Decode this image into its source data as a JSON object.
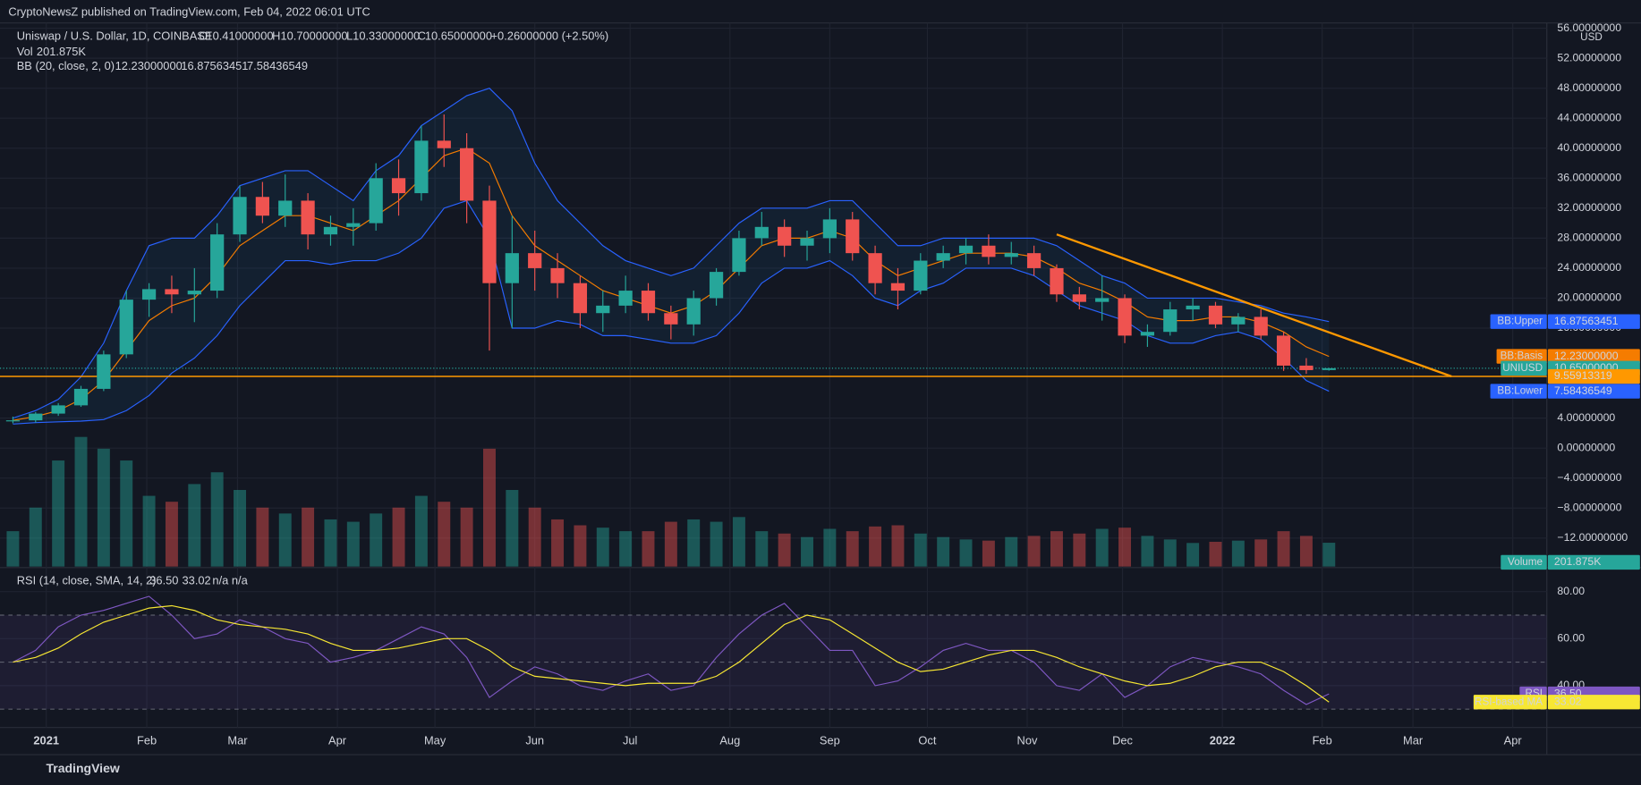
{
  "chart_data": {
    "type": "candlestick",
    "publisher": "CryptoNewsZ published on TradingView.com, Feb 04, 2022 06:01 UTC",
    "legend": {
      "symbol": "Uniswap / U.S. Dollar, 1D, COINBASE",
      "open_key": "O",
      "open": "10.41000000",
      "high_key": "H",
      "high": "10.70000000",
      "low_key": "L",
      "low": "10.33000000",
      "close_key": "C",
      "close": "10.65000000",
      "change": "+0.26000000 (+2.50%)"
    },
    "currency": "USD",
    "up_color": "#26a69a",
    "down_color": "#ef5350",
    "xlim": [
      -0.2,
      67.6
    ],
    "xticks": [
      {
        "value": 1.47,
        "label": "2021"
      },
      {
        "value": 5.9,
        "label": "Feb"
      },
      {
        "value": 9.9,
        "label": "Mar"
      },
      {
        "value": 14.3,
        "label": "Apr"
      },
      {
        "value": 18.6,
        "label": "May"
      },
      {
        "value": 23.0,
        "label": "Jun"
      },
      {
        "value": 27.2,
        "label": "Jul"
      },
      {
        "value": 31.6,
        "label": "Aug"
      },
      {
        "value": 36.0,
        "label": "Sep"
      },
      {
        "value": 40.3,
        "label": "Oct"
      },
      {
        "value": 44.7,
        "label": "Nov"
      },
      {
        "value": 48.9,
        "label": "Dec"
      },
      {
        "value": 53.3,
        "label": "2022"
      },
      {
        "value": 57.7,
        "label": "Feb"
      },
      {
        "value": 61.7,
        "label": "Mar"
      },
      {
        "value": 66.1,
        "label": "Apr"
      }
    ],
    "ylim": [
      -15.8,
      56.7
    ],
    "yticks": [
      {
        "value": 56,
        "label": "56.00000000"
      },
      {
        "value": 52,
        "label": "52.00000000"
      },
      {
        "value": 48,
        "label": "48.00000000"
      },
      {
        "value": 44,
        "label": "44.00000000"
      },
      {
        "value": 40,
        "label": "40.00000000"
      },
      {
        "value": 36,
        "label": "36.00000000"
      },
      {
        "value": 32,
        "label": "32.00000000"
      },
      {
        "value": 28,
        "label": "28.00000000"
      },
      {
        "value": 24,
        "label": "24.00000000"
      },
      {
        "value": 20,
        "label": "20.00000000"
      },
      {
        "value": 16,
        "label": "16.00000000"
      },
      {
        "value": 4,
        "label": "4.00000000"
      },
      {
        "value": 0,
        "label": "0.00000000"
      },
      {
        "value": -4,
        "label": "−4.00000000"
      },
      {
        "value": -8,
        "label": "−8.00000000"
      },
      {
        "value": -12,
        "label": "−12.00000000"
      }
    ],
    "open": [
      3.6,
      3.7,
      4.6,
      5.7,
      7.9,
      12.5,
      19.8,
      21.2,
      20.5,
      21.0,
      28.5,
      33.5,
      31.0,
      33.0,
      28.5,
      29.5,
      30.0,
      36.0,
      34.0,
      41.0,
      40.0,
      33.0,
      22.0,
      26.0,
      24.0,
      22.0,
      18.0,
      19.0,
      21.0,
      18.0,
      16.5,
      20.0,
      23.5,
      28.0,
      29.5,
      27.0,
      28.0,
      30.5,
      26.0,
      22.0,
      21.0,
      25.0,
      26.0,
      27.0,
      25.5,
      26.0,
      24.0,
      20.5,
      19.5,
      20.0,
      15.0,
      15.5,
      18.5,
      19.0,
      16.5,
      17.5,
      15.0,
      11.0,
      10.41
    ],
    "high": [
      4.2,
      4.8,
      6.0,
      8.3,
      13.0,
      21.0,
      22.0,
      23.0,
      24.0,
      30.0,
      35.0,
      35.5,
      36.5,
      34.0,
      31.0,
      32.0,
      38.0,
      38.5,
      43.0,
      44.5,
      42.0,
      35.0,
      31.0,
      29.0,
      26.0,
      23.0,
      21.0,
      23.0,
      22.0,
      19.0,
      21.0,
      24.0,
      29.0,
      31.5,
      30.5,
      29.0,
      32.0,
      31.5,
      27.0,
      24.0,
      26.0,
      27.0,
      28.0,
      28.5,
      27.5,
      27.0,
      24.5,
      21.5,
      23.0,
      20.5,
      16.5,
      19.5,
      20.0,
      19.5,
      18.0,
      18.5,
      15.5,
      12.0,
      10.7
    ],
    "low": [
      3.3,
      3.4,
      4.3,
      5.5,
      7.6,
      12.0,
      17.5,
      18.0,
      16.8,
      20.0,
      27.5,
      30.0,
      29.5,
      26.5,
      27.0,
      27.0,
      29.0,
      31.0,
      33.0,
      37.5,
      30.0,
      13.0,
      16.0,
      21.0,
      20.0,
      16.0,
      15.5,
      18.0,
      17.0,
      14.5,
      15.0,
      19.0,
      23.0,
      27.0,
      25.5,
      25.0,
      26.0,
      25.0,
      20.5,
      18.5,
      20.5,
      24.0,
      24.5,
      24.5,
      24.5,
      23.0,
      19.5,
      18.5,
      17.0,
      14.0,
      13.5,
      15.0,
      17.0,
      16.0,
      15.5,
      14.5,
      10.3,
      9.9,
      10.33
    ],
    "close": [
      3.7,
      4.6,
      5.7,
      7.9,
      12.5,
      19.8,
      21.2,
      20.5,
      21.0,
      28.5,
      33.5,
      31.0,
      33.0,
      28.5,
      29.5,
      30.0,
      36.0,
      34.0,
      41.0,
      40.0,
      33.0,
      22.0,
      26.0,
      24.0,
      22.0,
      18.0,
      19.0,
      21.0,
      18.0,
      16.5,
      20.0,
      23.5,
      28.0,
      29.5,
      27.0,
      28.0,
      30.5,
      26.0,
      22.0,
      21.0,
      25.0,
      26.0,
      27.0,
      25.5,
      26.0,
      24.0,
      20.5,
      19.5,
      20.0,
      15.0,
      15.5,
      18.5,
      19.0,
      16.5,
      17.5,
      15.0,
      11.0,
      10.4,
      10.65
    ],
    "price_tag": {
      "name": "UNIUSD",
      "value_label": "10.65000000",
      "color": "#26a69a"
    },
    "volume": {
      "name": "Vol",
      "tag": "Volume",
      "value_label": "201.875K",
      "values": [
        300000,
        500000,
        900000,
        1100000,
        1000000,
        900000,
        600000,
        550000,
        700000,
        800000,
        650000,
        500000,
        450000,
        500000,
        400000,
        380000,
        450000,
        500000,
        600000,
        550000,
        500000,
        1000000,
        650000,
        500000,
        400000,
        350000,
        330000,
        300000,
        300000,
        380000,
        400000,
        380000,
        420000,
        300000,
        280000,
        250000,
        320000,
        300000,
        340000,
        350000,
        280000,
        250000,
        230000,
        220000,
        250000,
        260000,
        300000,
        280000,
        320000,
        330000,
        260000,
        230000,
        200000,
        210000,
        220000,
        230000,
        300000,
        260000,
        201875
      ]
    },
    "bollinger": {
      "name": "BB (20, close, 2, 0)",
      "basis": {
        "tag": "BB:Basis",
        "value_label": "12.23000000",
        "color": "#f57c00",
        "values": [
          3.7,
          4.2,
          5,
          6.5,
          9,
          13,
          17,
          19,
          20,
          23,
          27,
          29,
          31,
          31,
          30,
          29,
          31,
          33,
          36,
          39,
          40,
          38,
          31,
          27,
          25,
          23,
          21,
          20,
          19,
          18,
          19,
          21,
          24,
          27,
          28,
          28,
          29,
          28,
          25,
          23,
          24,
          25,
          26,
          26,
          26,
          25.5,
          24,
          22,
          21,
          19.5,
          17.5,
          17,
          17,
          17.5,
          17.5,
          16.8,
          15.5,
          13.5,
          12.23
        ]
      },
      "upper": {
        "tag": "BB:Upper",
        "value_label": "16.87563451",
        "color": "#2962ff",
        "values": [
          4,
          5,
          6.5,
          9.5,
          14,
          21,
          27,
          28,
          28,
          31,
          35,
          36,
          37,
          37,
          35,
          33,
          37,
          39,
          43,
          45,
          47,
          48,
          45,
          38,
          33,
          30,
          27,
          25,
          24,
          23,
          24,
          27,
          30,
          32,
          32,
          32,
          33,
          33,
          30,
          27,
          27,
          28,
          28,
          28,
          28,
          28,
          27,
          25,
          23,
          22,
          20,
          20,
          20,
          20,
          19.5,
          19,
          18,
          17.5,
          16.87563451
        ]
      },
      "lower": {
        "tag": "BB:Lower",
        "value_label": "7.58436549",
        "color": "#2962ff",
        "values": [
          3.2,
          3.4,
          3.5,
          3.6,
          3.8,
          5,
          7,
          10,
          12,
          15,
          19,
          22,
          25,
          25,
          24.5,
          25,
          25,
          26,
          28,
          32,
          33,
          28,
          16,
          16,
          17,
          16.5,
          15,
          15,
          14.5,
          14,
          14,
          15,
          18,
          22,
          24,
          24,
          25,
          23,
          20,
          19,
          21,
          22,
          24,
          24,
          24,
          23,
          21,
          19,
          18,
          17,
          15,
          14,
          14,
          15,
          15.5,
          14.5,
          12,
          9,
          7.58436549
        ]
      }
    },
    "trendline": {
      "x": [
        46.0,
        63.4
      ],
      "y": [
        28.5,
        9.56
      ],
      "color": "#ff9800"
    },
    "support": {
      "value": 9.55913319,
      "value_label": "9.55913319",
      "color": "#ff9800"
    },
    "rsi": {
      "title": "RSI (14, close, SMA, 14, 2)",
      "na": "n/a n/a",
      "ylim": [
        22.2,
        88
      ],
      "yticks": [
        {
          "value": 80,
          "label": "80.00"
        },
        {
          "value": 60,
          "label": "60.00"
        },
        {
          "value": 40,
          "label": "40.00"
        }
      ],
      "bands": [
        30,
        50,
        70
      ],
      "line": {
        "tag": "RSI",
        "value_label": "36.50",
        "color": "#7e57c2",
        "values": [
          50,
          55,
          65,
          70,
          72,
          75,
          78,
          70,
          60,
          62,
          68,
          65,
          60,
          58,
          50,
          52,
          55,
          60,
          65,
          62,
          52,
          35,
          42,
          48,
          45,
          40,
          38,
          42,
          45,
          38,
          40,
          52,
          62,
          70,
          75,
          65,
          55,
          55,
          40,
          42,
          48,
          55,
          58,
          55,
          55,
          50,
          40,
          38,
          45,
          35,
          40,
          48,
          52,
          50,
          48,
          45,
          38,
          32,
          36.5
        ]
      },
      "ma": {
        "tag": "RSI-based MA",
        "value_label": "33.02",
        "color": "#f7e733",
        "values": [
          50,
          52,
          56,
          62,
          67,
          70,
          73,
          74,
          72,
          68,
          66,
          65,
          64,
          62,
          58,
          55,
          55,
          56,
          58,
          60,
          60,
          55,
          48,
          44,
          43,
          42,
          41,
          40,
          41,
          41,
          41,
          44,
          50,
          58,
          66,
          70,
          68,
          62,
          56,
          50,
          46,
          47,
          50,
          53,
          55,
          55,
          52,
          48,
          45,
          42,
          40,
          41,
          44,
          48,
          50,
          50,
          46,
          40,
          33.02
        ]
      }
    },
    "watermark": "TradingView"
  }
}
